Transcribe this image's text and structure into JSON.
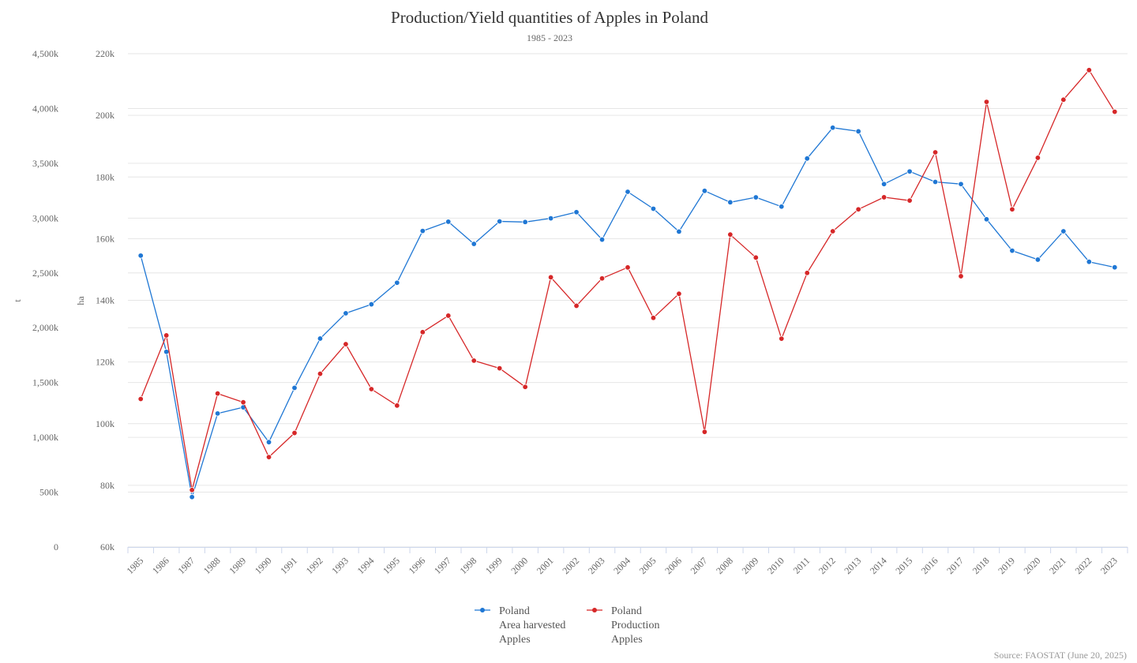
{
  "chart_data": {
    "type": "line",
    "title": "Production/Yield quantities of Apples in Poland",
    "subtitle": "1985 - 2023",
    "source": "Source: FAOSTAT (June 20, 2025)",
    "x": [
      "1985",
      "1986",
      "1987",
      "1988",
      "1989",
      "1990",
      "1991",
      "1992",
      "1993",
      "1994",
      "1995",
      "1996",
      "1997",
      "1998",
      "1999",
      "2000",
      "2001",
      "2002",
      "2003",
      "2004",
      "2005",
      "2006",
      "2007",
      "2008",
      "2009",
      "2010",
      "2011",
      "2012",
      "2013",
      "2014",
      "2015",
      "2016",
      "2017",
      "2018",
      "2019",
      "2020",
      "2021",
      "2022",
      "2023"
    ],
    "y_axes": [
      {
        "id": "t",
        "title": "t",
        "min": 0,
        "max": 4500000,
        "ticks": [
          0,
          500000,
          1000000,
          1500000,
          2000000,
          2500000,
          3000000,
          3500000,
          4000000,
          4500000
        ],
        "tick_labels": [
          "0",
          "500k",
          "1,000k",
          "1,500k",
          "2,000k",
          "2,500k",
          "3,000k",
          "3,500k",
          "4,000k",
          "4,500k"
        ]
      },
      {
        "id": "ha",
        "title": "ha",
        "min": 60000,
        "max": 220000,
        "ticks": [
          60000,
          80000,
          100000,
          120000,
          140000,
          160000,
          180000,
          200000,
          220000
        ],
        "tick_labels": [
          "60k",
          "80k",
          "100k",
          "120k",
          "140k",
          "160k",
          "180k",
          "200k",
          "220k"
        ]
      }
    ],
    "series": [
      {
        "name_lines": [
          "Poland",
          "Area harvested",
          "Apples"
        ],
        "axis": "ha",
        "color": "#1f77d4",
        "values": [
          154500,
          123300,
          76200,
          103300,
          105300,
          94000,
          111600,
          127600,
          135800,
          138700,
          145700,
          162500,
          165500,
          158300,
          165600,
          165400,
          166600,
          168600,
          159700,
          175200,
          169700,
          162300,
          175500,
          171800,
          173400,
          170400,
          186000,
          196000,
          194800,
          177700,
          181800,
          178400,
          177700,
          166300,
          156100,
          153200,
          162400,
          152500,
          150700
        ]
      },
      {
        "name_lines": [
          "Poland",
          "Production",
          "Apples"
        ],
        "axis": "t",
        "color": "#d62728",
        "values": [
          1350000,
          1930000,
          520000,
          1400000,
          1320000,
          820000,
          1040000,
          1580000,
          1850000,
          1440000,
          1290000,
          1960000,
          2110000,
          1700000,
          1630000,
          1460000,
          2460000,
          2200000,
          2450000,
          2550000,
          2090000,
          2310000,
          1050000,
          2850000,
          2640000,
          1900000,
          2500000,
          2880000,
          3080000,
          3190000,
          3160000,
          3600000,
          2470000,
          4060000,
          3080000,
          3550000,
          4080000,
          4350000,
          3970000
        ]
      }
    ],
    "grid": true,
    "legend_position": "bottom-center"
  }
}
